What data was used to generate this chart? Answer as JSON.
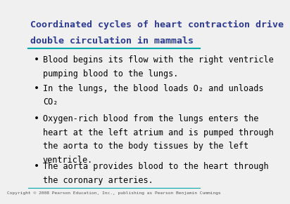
{
  "title_line1": "Coordinated cycles of heart contraction drive",
  "title_line2": "double circulation in mammals",
  "title_color": "#2B3990",
  "title_fontsize": 9.5,
  "title_font": "monospace",
  "rule_color": "#00AAAA",
  "background_color": "#F0F0F0",
  "bullet_color": "#000000",
  "text_color": "#000000",
  "text_fontsize": 8.5,
  "text_font": "monospace",
  "footer_text": "Copyright © 2008 Pearson Education, Inc., publishing as Pearson Benjamin Cummings",
  "footer_fontsize": 4.5,
  "footer_color": "#555555",
  "bullets": [
    {
      "lines": [
        "Blood begins its flow with the right ventricle",
        "pumping blood to the lungs."
      ]
    },
    {
      "lines": [
        "In the lungs, the blood loads O₂ and unloads",
        "CO₂"
      ]
    },
    {
      "lines": [
        "Oxygen-rich blood from the lungs enters the",
        "heart at the left atrium and is pumped through",
        "the aorta to the body tissues by the left",
        "ventricle."
      ]
    },
    {
      "lines": [
        "The aorta provides blood to the heart through",
        "the coronary arteries."
      ]
    }
  ]
}
